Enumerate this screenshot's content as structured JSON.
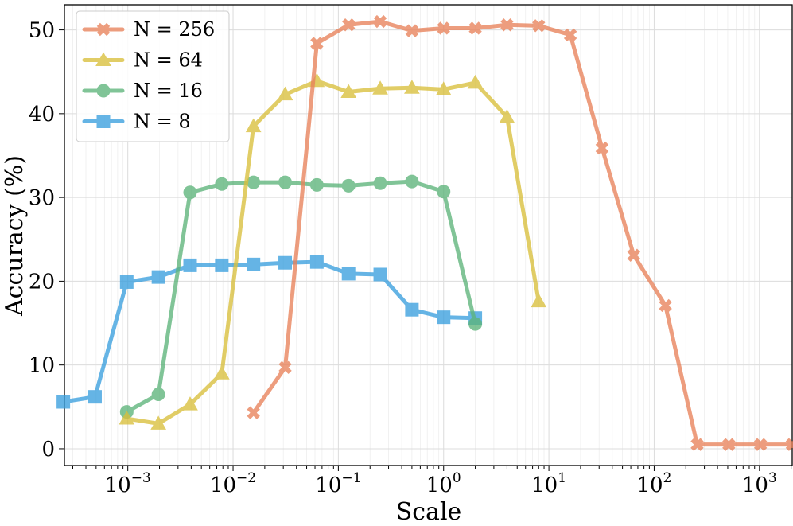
{
  "chart_data": {
    "type": "line",
    "title": "",
    "xlabel": "Scale",
    "ylabel": "Accuracy (%)",
    "xscale": "log",
    "xlim": [
      0.00025,
      2048
    ],
    "ylim": [
      -2,
      53
    ],
    "x_ticks": [
      {
        "value": 0.001,
        "base": "10",
        "exp": "−3"
      },
      {
        "value": 0.01,
        "base": "10",
        "exp": "−2"
      },
      {
        "value": 0.1,
        "base": "10",
        "exp": "−1"
      },
      {
        "value": 1,
        "base": "10",
        "exp": "0"
      },
      {
        "value": 10,
        "base": "10",
        "exp": "1"
      },
      {
        "value": 100,
        "base": "10",
        "exp": "2"
      },
      {
        "value": 1000,
        "base": "10",
        "exp": "3"
      }
    ],
    "y_ticks": [
      0,
      10,
      20,
      30,
      40,
      50
    ],
    "grid": true,
    "legend_position": "top-left",
    "series": [
      {
        "name": "N = 256",
        "color": "#e8825a",
        "marker": "x",
        "x": [
          0.015625,
          0.03125,
          0.0625,
          0.125,
          0.25,
          0.5,
          1,
          2,
          4,
          8,
          16,
          32,
          64,
          128,
          256,
          512,
          1024,
          2048
        ],
        "y": [
          4.3,
          9.7,
          48.4,
          50.6,
          51.0,
          49.9,
          50.2,
          50.2,
          50.6,
          50.5,
          49.4,
          35.9,
          23.1,
          17.1,
          0.5,
          0.5,
          0.5,
          0.5
        ]
      },
      {
        "name": "N = 64",
        "color": "#d9bf3c",
        "marker": "triangle",
        "x": [
          0.0009765625,
          0.001953125,
          0.00390625,
          0.0078125,
          0.015625,
          0.03125,
          0.0625,
          0.125,
          0.25,
          0.5,
          1,
          2,
          4,
          8
        ],
        "y": [
          3.6,
          3.0,
          5.3,
          9.0,
          38.5,
          42.3,
          43.9,
          42.6,
          43.0,
          43.1,
          42.9,
          43.7,
          39.6,
          17.6
        ]
      },
      {
        "name": "N = 16",
        "color": "#5db47a",
        "marker": "circle",
        "x": [
          0.0009765625,
          0.001953125,
          0.00390625,
          0.0078125,
          0.015625,
          0.03125,
          0.0625,
          0.125,
          0.25,
          0.5,
          1,
          2
        ],
        "y": [
          4.4,
          6.5,
          30.6,
          31.6,
          31.8,
          31.8,
          31.5,
          31.4,
          31.7,
          31.9,
          30.7,
          14.9
        ]
      },
      {
        "name": "N = 8",
        "color": "#3a9fde",
        "marker": "square",
        "x": [
          0.000244140625,
          0.00048828125,
          0.0009765625,
          0.001953125,
          0.00390625,
          0.0078125,
          0.015625,
          0.03125,
          0.0625,
          0.125,
          0.25,
          0.5,
          1,
          2
        ],
        "y": [
          5.6,
          6.2,
          19.9,
          20.5,
          21.9,
          21.9,
          22.0,
          22.2,
          22.3,
          20.9,
          20.8,
          16.6,
          15.7,
          15.6
        ]
      }
    ]
  }
}
